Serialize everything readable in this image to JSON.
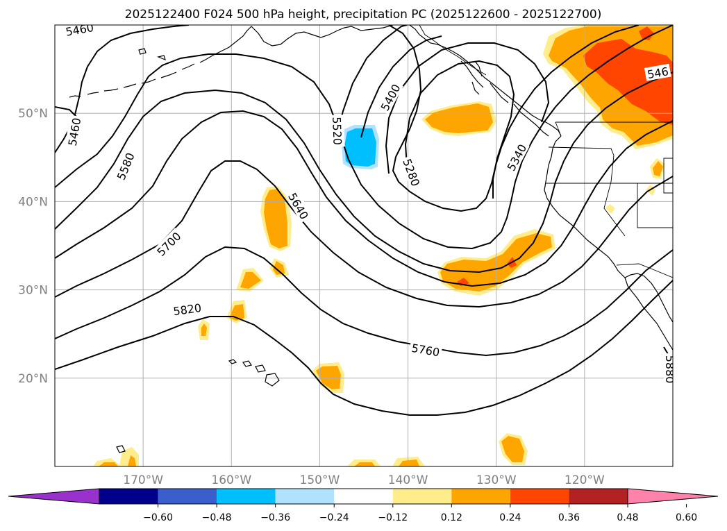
{
  "title": "2025122400 F024 500 hPa height, precipitation PC (2025122600 - 2025122700)",
  "map": {
    "lon_range": [
      -180,
      -110
    ],
    "lat_range": [
      10,
      60
    ],
    "lat_ticks": [
      {
        "value": 50,
        "label": "50°N"
      },
      {
        "value": 40,
        "label": "40°N"
      },
      {
        "value": 30,
        "label": "30°N"
      },
      {
        "value": 20,
        "label": "20°N"
      }
    ],
    "lon_ticks": [
      {
        "value": -170,
        "label": "170°W"
      },
      {
        "value": -160,
        "label": "160°W"
      },
      {
        "value": -150,
        "label": "150°W"
      },
      {
        "value": -140,
        "label": "140°W"
      },
      {
        "value": -130,
        "label": "130°W"
      },
      {
        "value": -120,
        "label": "120°W"
      }
    ],
    "grid": true
  },
  "contour_labels": [
    {
      "text": "5460",
      "lon": -177.2,
      "lat": 59.5,
      "angle": -10
    },
    {
      "text": "5460",
      "lon": -177.8,
      "lat": 47.9,
      "angle": -80
    },
    {
      "text": "5580",
      "lon": -172.0,
      "lat": 44.0,
      "angle": -68
    },
    {
      "text": "5700",
      "lon": -167.1,
      "lat": 35.2,
      "angle": -45
    },
    {
      "text": "5820",
      "lon": -165.0,
      "lat": 27.8,
      "angle": -8
    },
    {
      "text": "5640",
      "lon": -152.4,
      "lat": 39.5,
      "angle": 60
    },
    {
      "text": "5520",
      "lon": -148.0,
      "lat": 48.0,
      "angle": 88
    },
    {
      "text": "5400",
      "lon": -142.0,
      "lat": 51.8,
      "angle": -62
    },
    {
      "text": "5280",
      "lon": -139.6,
      "lat": 43.3,
      "angle": 70
    },
    {
      "text": "5340",
      "lon": -127.7,
      "lat": 45.0,
      "angle": -62
    },
    {
      "text": "5760",
      "lon": -138.0,
      "lat": 23.2,
      "angle": 10
    },
    {
      "text": "546",
      "lon": -111.7,
      "lat": 54.6,
      "angle": -10
    },
    {
      "text": "5880",
      "lon": -110.3,
      "lat": 21.0,
      "angle": 90
    }
  ],
  "colorbar": {
    "colors": [
      "#9932cc",
      "#00008b",
      "#3a5fcd",
      "#00bfff",
      "#b0e2ff",
      "#ffffff",
      "#ffec8b",
      "#ffa500",
      "#ff4500",
      "#b22222",
      "#ff82ab"
    ],
    "ticks": [
      "−0.60",
      "−0.48",
      "−0.36",
      "−0.24",
      "−0.12",
      "0.12",
      "0.24",
      "0.36",
      "0.48",
      "0.60"
    ]
  }
}
